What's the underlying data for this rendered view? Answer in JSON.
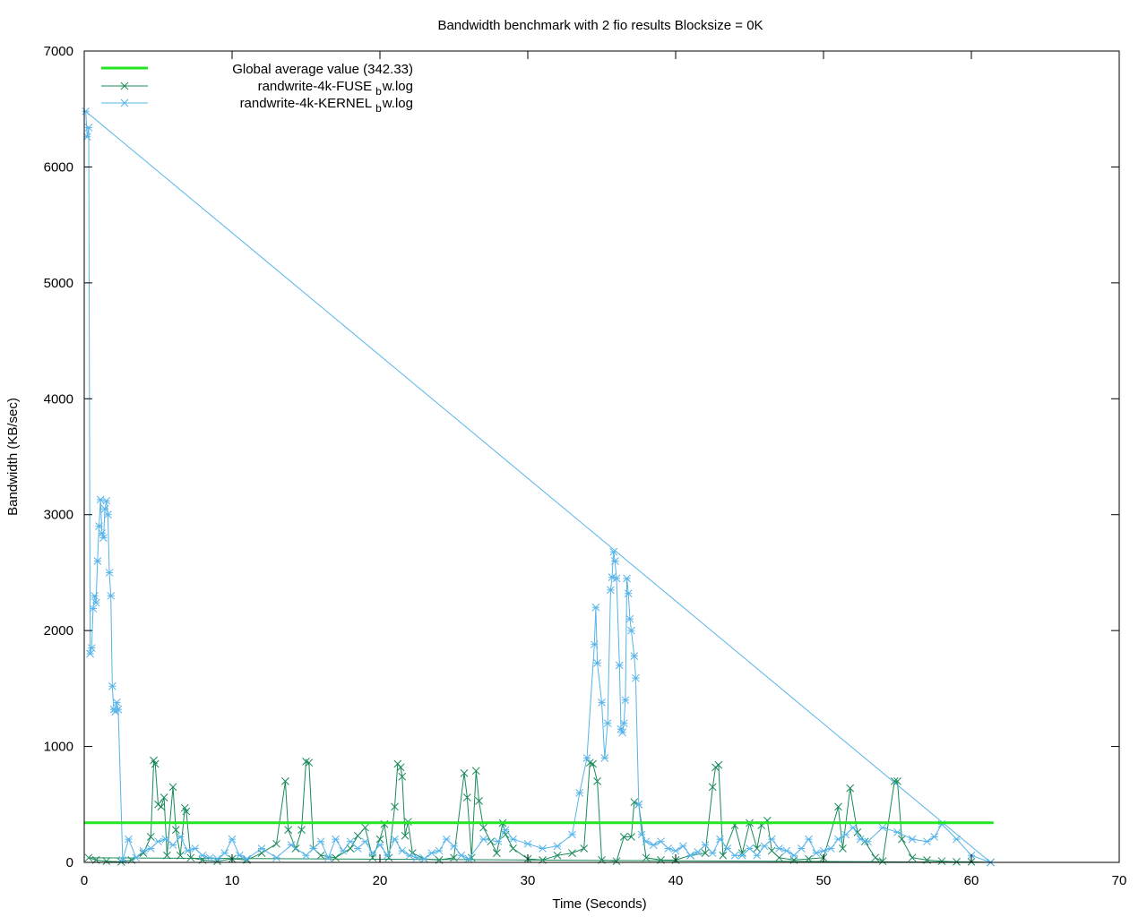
{
  "chart_data": {
    "type": "line",
    "title": "Bandwidth benchmark with 2 fio results  Blocksize = 0K",
    "xlabel": "Time (Seconds)",
    "ylabel": "Bandwidth (KB/sec)",
    "xlim": [
      0,
      70
    ],
    "ylim": [
      0,
      7000
    ],
    "x_ticks": [
      0,
      10,
      20,
      30,
      40,
      50,
      60,
      70
    ],
    "y_ticks": [
      0,
      1000,
      2000,
      3000,
      4000,
      5000,
      6000,
      7000
    ],
    "x_tick_labels": [
      "0",
      "10",
      "20",
      "30",
      "40",
      "50",
      "60",
      "70"
    ],
    "y_tick_labels": [
      "0",
      "1000",
      "2000",
      "3000",
      "4000",
      "5000",
      "6000",
      "7000"
    ],
    "grid": false,
    "legend_position": "top-left",
    "average_line": {
      "label": "Global average value (342.33)",
      "value": 342.33,
      "x_range": [
        0,
        61.5
      ],
      "color": "#22e622"
    },
    "series": [
      {
        "name": "randwrite-4k-FUSE",
        "name_subscript": "b",
        "name_suffix": "w.log",
        "marker": "x",
        "color": "#1a8a5a",
        "points": [
          [
            0.3,
            40
          ],
          [
            0.8,
            20
          ],
          [
            1.5,
            10
          ],
          [
            2.5,
            5
          ],
          [
            3.2,
            20
          ],
          [
            4,
            80
          ],
          [
            4.5,
            220
          ],
          [
            4.7,
            880
          ],
          [
            4.8,
            850
          ],
          [
            5,
            500
          ],
          [
            5.2,
            480
          ],
          [
            5.4,
            560
          ],
          [
            5.6,
            60
          ],
          [
            6,
            650
          ],
          [
            6.2,
            280
          ],
          [
            6.5,
            60
          ],
          [
            6.8,
            470
          ],
          [
            6.9,
            440
          ],
          [
            7.2,
            40
          ],
          [
            8,
            20
          ],
          [
            9,
            10
          ],
          [
            10,
            30
          ],
          [
            11,
            20
          ],
          [
            12,
            80
          ],
          [
            13,
            160
          ],
          [
            13.6,
            700
          ],
          [
            13.8,
            280
          ],
          [
            14.3,
            120
          ],
          [
            14.7,
            280
          ],
          [
            15,
            870
          ],
          [
            15.2,
            860
          ],
          [
            15.5,
            120
          ],
          [
            16,
            60
          ],
          [
            17,
            40
          ],
          [
            18,
            120
          ],
          [
            18.5,
            230
          ],
          [
            19,
            300
          ],
          [
            19.5,
            40
          ],
          [
            20,
            200
          ],
          [
            20.3,
            330
          ],
          [
            20.6,
            40
          ],
          [
            21,
            480
          ],
          [
            21.2,
            850
          ],
          [
            21.4,
            820
          ],
          [
            21.5,
            740
          ],
          [
            21.7,
            230
          ],
          [
            21.9,
            350
          ],
          [
            22.2,
            80
          ],
          [
            23,
            30
          ],
          [
            24,
            20
          ],
          [
            25,
            40
          ],
          [
            25.7,
            770
          ],
          [
            25.9,
            560
          ],
          [
            26.2,
            40
          ],
          [
            26.5,
            790
          ],
          [
            26.7,
            530
          ],
          [
            27,
            300
          ],
          [
            27.5,
            180
          ],
          [
            27.9,
            80
          ],
          [
            28.3,
            340
          ],
          [
            28.5,
            240
          ],
          [
            29,
            120
          ],
          [
            30,
            30
          ],
          [
            31,
            20
          ],
          [
            32,
            60
          ],
          [
            33,
            80
          ],
          [
            33.8,
            120
          ],
          [
            34.2,
            860
          ],
          [
            34.4,
            850
          ],
          [
            34.7,
            700
          ],
          [
            35,
            20
          ],
          [
            36,
            10
          ],
          [
            36.5,
            220
          ],
          [
            37,
            220
          ],
          [
            37.2,
            520
          ],
          [
            37.5,
            500
          ],
          [
            38,
            40
          ],
          [
            39,
            20
          ],
          [
            40,
            20
          ],
          [
            41,
            60
          ],
          [
            42,
            80
          ],
          [
            42.5,
            650
          ],
          [
            42.7,
            820
          ],
          [
            42.9,
            840
          ],
          [
            43.2,
            60
          ],
          [
            44,
            320
          ],
          [
            44.5,
            80
          ],
          [
            45,
            340
          ],
          [
            45.5,
            120
          ],
          [
            45.8,
            320
          ],
          [
            46.2,
            360
          ],
          [
            46.5,
            100
          ],
          [
            47,
            40
          ],
          [
            48,
            20
          ],
          [
            49,
            30
          ],
          [
            50,
            40
          ],
          [
            51,
            480
          ],
          [
            51.3,
            120
          ],
          [
            51.8,
            640
          ],
          [
            52.3,
            260
          ],
          [
            52.8,
            180
          ],
          [
            53.5,
            40
          ],
          [
            54,
            10
          ],
          [
            54.8,
            700
          ],
          [
            55,
            700
          ],
          [
            55.3,
            200
          ],
          [
            56,
            40
          ],
          [
            57,
            20
          ],
          [
            58,
            10
          ],
          [
            59,
            5
          ],
          [
            60,
            5
          ],
          [
            61.3,
            0
          ]
        ]
      },
      {
        "name": "randwrite-4k-KERNEL",
        "name_subscript": "b",
        "name_suffix": "w.log",
        "marker": "*",
        "color": "#56b4e9",
        "points": [
          [
            0.1,
            6480
          ],
          [
            0.2,
            6260
          ],
          [
            0.3,
            6340
          ],
          [
            0.4,
            1800
          ],
          [
            0.5,
            1850
          ],
          [
            0.6,
            2190
          ],
          [
            0.7,
            2300
          ],
          [
            0.8,
            2240
          ],
          [
            0.9,
            2600
          ],
          [
            1,
            2900
          ],
          [
            1.1,
            3130
          ],
          [
            1.2,
            2840
          ],
          [
            1.3,
            2800
          ],
          [
            1.4,
            3050
          ],
          [
            1.5,
            3120
          ],
          [
            1.6,
            3000
          ],
          [
            1.7,
            2500
          ],
          [
            1.8,
            2300
          ],
          [
            1.9,
            1520
          ],
          [
            2,
            1320
          ],
          [
            2.1,
            1300
          ],
          [
            2.2,
            1380
          ],
          [
            2.3,
            1320
          ],
          [
            2.6,
            20
          ],
          [
            3,
            200
          ],
          [
            3.5,
            40
          ],
          [
            4,
            100
          ],
          [
            4.5,
            120
          ],
          [
            5,
            180
          ],
          [
            5.5,
            200
          ],
          [
            6,
            150
          ],
          [
            6.5,
            220
          ],
          [
            7,
            100
          ],
          [
            7.5,
            120
          ],
          [
            8,
            60
          ],
          [
            8.5,
            40
          ],
          [
            9,
            30
          ],
          [
            9.5,
            80
          ],
          [
            10,
            200
          ],
          [
            10.5,
            60
          ],
          [
            11,
            30
          ],
          [
            12,
            120
          ],
          [
            13,
            40
          ],
          [
            14,
            150
          ],
          [
            15,
            60
          ],
          [
            15.5,
            120
          ],
          [
            16,
            180
          ],
          [
            16.5,
            40
          ],
          [
            17,
            200
          ],
          [
            17.5,
            100
          ],
          [
            18,
            180
          ],
          [
            18.5,
            120
          ],
          [
            19,
            180
          ],
          [
            19.5,
            80
          ],
          [
            20,
            150
          ],
          [
            20.5,
            60
          ],
          [
            21,
            200
          ],
          [
            21.5,
            100
          ],
          [
            22,
            60
          ],
          [
            22.5,
            40
          ],
          [
            23,
            30
          ],
          [
            23.5,
            80
          ],
          [
            24,
            100
          ],
          [
            24.5,
            200
          ],
          [
            25,
            140
          ],
          [
            25.5,
            60
          ],
          [
            26,
            30
          ],
          [
            27,
            200
          ],
          [
            28,
            180
          ],
          [
            28.5,
            280
          ],
          [
            29,
            200
          ],
          [
            30,
            160
          ],
          [
            31,
            120
          ],
          [
            32,
            140
          ],
          [
            33,
            240
          ],
          [
            33.5,
            600
          ],
          [
            34,
            900
          ],
          [
            34.5,
            1880
          ],
          [
            34.6,
            2200
          ],
          [
            34.7,
            1720
          ],
          [
            35,
            1380
          ],
          [
            35.2,
            900
          ],
          [
            35.4,
            1200
          ],
          [
            35.6,
            2350
          ],
          [
            35.7,
            2460
          ],
          [
            35.8,
            2680
          ],
          [
            35.9,
            2600
          ],
          [
            36,
            2450
          ],
          [
            36.2,
            1700
          ],
          [
            36.3,
            1150
          ],
          [
            36.4,
            1120
          ],
          [
            36.5,
            1200
          ],
          [
            36.6,
            1400
          ],
          [
            36.7,
            2450
          ],
          [
            36.8,
            2320
          ],
          [
            36.9,
            2100
          ],
          [
            37,
            2000
          ],
          [
            37.2,
            1780
          ],
          [
            37.3,
            1590
          ],
          [
            37.5,
            500
          ],
          [
            37.7,
            240
          ],
          [
            38,
            180
          ],
          [
            38.5,
            150
          ],
          [
            39,
            180
          ],
          [
            39.5,
            120
          ],
          [
            40,
            100
          ],
          [
            40.5,
            140
          ],
          [
            41,
            60
          ],
          [
            41.5,
            90
          ],
          [
            42,
            150
          ],
          [
            42.5,
            80
          ],
          [
            43,
            200
          ],
          [
            43.5,
            120
          ],
          [
            44,
            60
          ],
          [
            44.5,
            60
          ],
          [
            45,
            120
          ],
          [
            45.5,
            60
          ],
          [
            46,
            140
          ],
          [
            46.5,
            200
          ],
          [
            47,
            120
          ],
          [
            47.5,
            100
          ],
          [
            48,
            60
          ],
          [
            48.5,
            120
          ],
          [
            49,
            200
          ],
          [
            49.5,
            80
          ],
          [
            50,
            100
          ],
          [
            50.5,
            120
          ],
          [
            51,
            200
          ],
          [
            51.5,
            240
          ],
          [
            52,
            300
          ],
          [
            52.5,
            200
          ],
          [
            53,
            180
          ],
          [
            54,
            300
          ],
          [
            55,
            260
          ],
          [
            56,
            200
          ],
          [
            57,
            180
          ],
          [
            57.5,
            220
          ],
          [
            58,
            330
          ],
          [
            59,
            200
          ],
          [
            60,
            60
          ],
          [
            61.3,
            0
          ]
        ]
      }
    ]
  }
}
